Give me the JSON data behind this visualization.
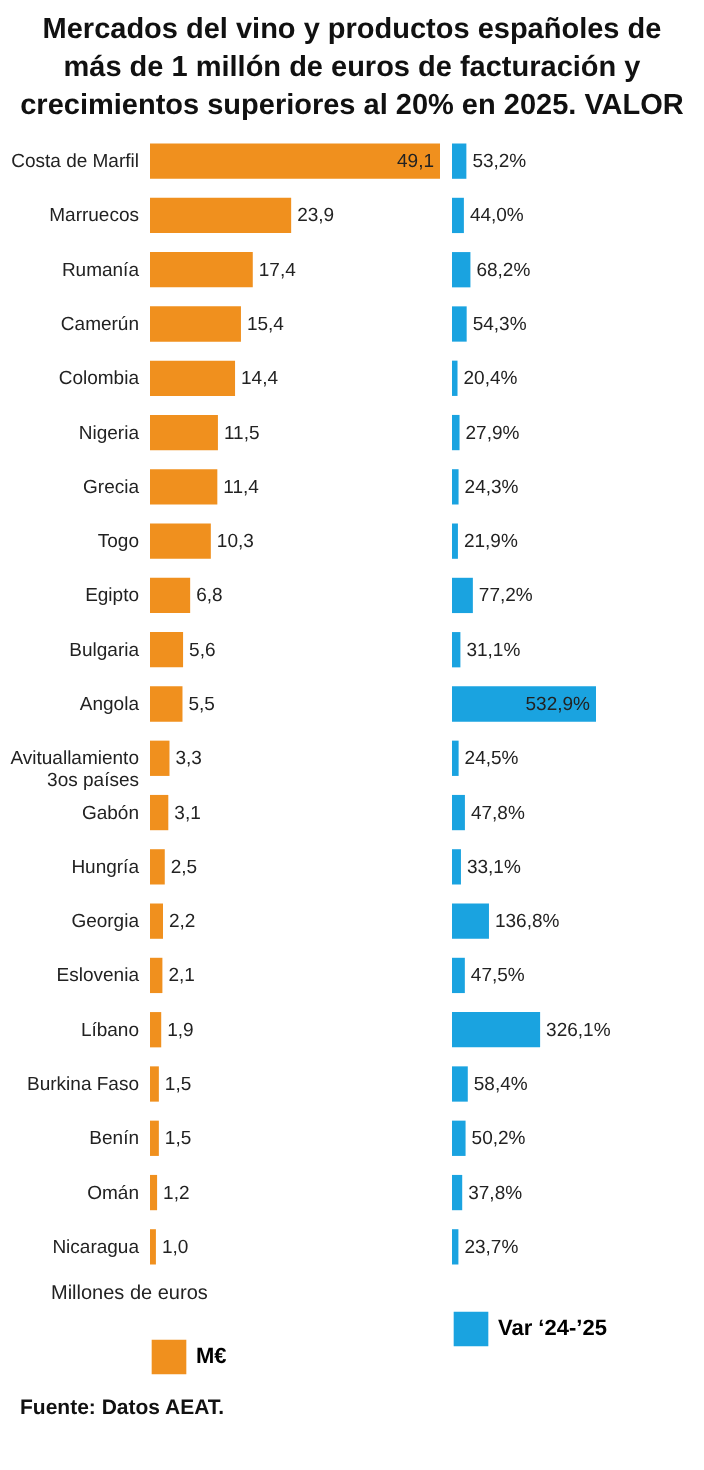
{
  "chart_data": [
    {
      "type": "bar",
      "orientation": "horizontal",
      "title": "Mercados del vino y productos españoles de más de 1 millón de euros de facturación y crecimientos superiores al 20% en 2025. VALOR",
      "xlabel": "Millones de euros",
      "annotations": [
        "Fuente: Datos AEAT."
      ],
      "tick_labels": "y",
      "legend": "bottom",
      "categories": [
        "Costa de Marfil",
        "Marruecos",
        "Rumanía",
        "Camerún",
        "Colombia",
        "Nigeria",
        "Grecia",
        "Togo",
        "Egipto",
        "Bulgaria",
        "Angola",
        "Avituallamiento 3os países",
        "Gabón",
        "Hungría",
        "Georgia",
        "Eslovenia",
        "Líbano",
        "Burkina Faso",
        "Benín",
        "Omán",
        "Nicaragua"
      ],
      "series": [
        {
          "name": "M€",
          "color": "#f0901e",
          "values": [
            49.1,
            23.9,
            17.4,
            15.4,
            14.4,
            11.5,
            11.4,
            10.3,
            6.8,
            5.6,
            5.5,
            3.3,
            3.1,
            2.5,
            2.2,
            2.1,
            1.9,
            1.5,
            1.5,
            1.2,
            1.0
          ],
          "value_labels": [
            "49,1",
            "23,9",
            "17,4",
            "15,4",
            "14,4",
            "11,5",
            "11,4",
            "10,3",
            "6,8",
            "5,6",
            "5,5",
            "3,3",
            "3,1",
            "2,5",
            "2,2",
            "2,1",
            "1,9",
            "1,5",
            "1,5",
            "1,2",
            "1,0"
          ]
        }
      ]
    },
    {
      "type": "bar",
      "orientation": "horizontal",
      "tick_labels": false,
      "legend": "bottom",
      "categories": [
        null,
        null,
        null,
        null,
        null,
        null,
        null,
        null,
        null,
        null,
        null,
        null,
        null,
        null,
        null,
        null,
        null,
        null,
        null,
        null,
        null
      ],
      "series": [
        {
          "name": "Var ‘24-’25",
          "color": "#1aa3e0",
          "values": [
            53.2,
            44.0,
            68.2,
            54.3,
            20.4,
            27.9,
            24.3,
            21.9,
            77.2,
            31.1,
            532.9,
            24.5,
            47.8,
            33.1,
            136.8,
            47.5,
            326.1,
            58.4,
            50.2,
            37.8,
            23.7
          ],
          "value_labels": [
            "53,2%",
            "44,0%",
            "68,2%",
            "54,3%",
            "20,4%",
            "27,9%",
            "24,3%",
            "21,9%",
            "77,2%",
            "31,1%",
            "532,9%",
            "24,5%",
            "47,8%",
            "33,1%",
            "136,8%",
            "47,5%",
            "326,1%",
            "58,4%",
            "50,2%",
            "37,8%",
            "23,7%"
          ]
        }
      ]
    }
  ]
}
